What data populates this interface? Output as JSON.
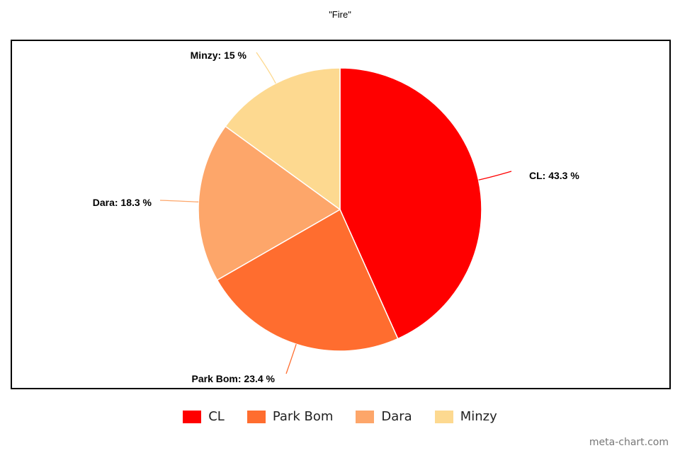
{
  "chart_data": {
    "type": "pie",
    "title": "\"Fire\"",
    "start_angle": "top, clockwise",
    "slices": [
      {
        "label": "CL",
        "value": 43.3,
        "display": "CL: 43.3 %",
        "color": "#ff0000"
      },
      {
        "label": "Park Bom",
        "value": 23.4,
        "display": "Park Bom: 23.4 %",
        "color": "#ff6d2f"
      },
      {
        "label": "Dara",
        "value": 18.3,
        "display": "Dara: 18.3 %",
        "color": "#fda66a"
      },
      {
        "label": "Minzy",
        "value": 15,
        "display": "Minzy: 15 %",
        "color": "#fdd990"
      }
    ],
    "legend_position": "bottom"
  },
  "credit": "meta-chart.com"
}
